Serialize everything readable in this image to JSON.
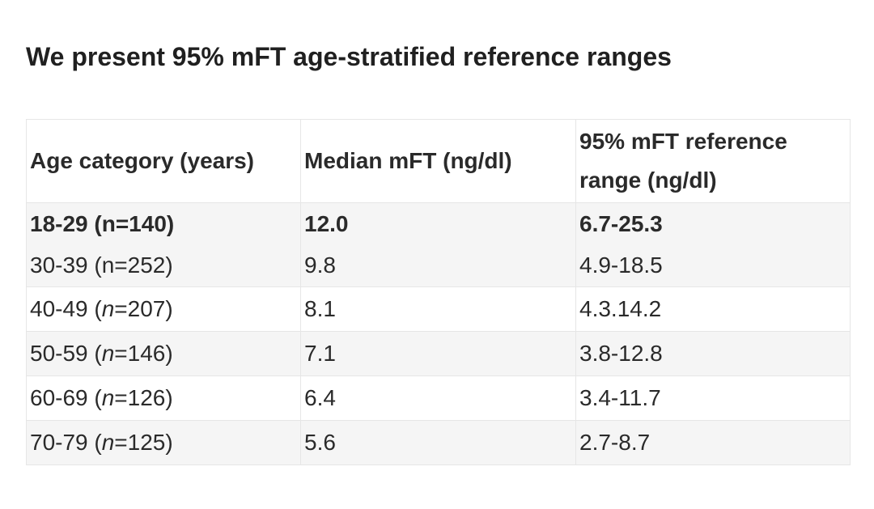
{
  "heading": "We present 95% mFT age-stratified reference ranges",
  "table": {
    "headers": [
      "Age category (years)",
      "Median mFT (ng/dl)",
      "95% mFT reference range (ng/dl)"
    ],
    "rows": [
      {
        "age_prefix": "18-29 (",
        "n_label": "n",
        "age_suffix": "=140)",
        "median": "12.0",
        "range": "6.7-25.3"
      },
      {
        "age_prefix": "30-39 (",
        "n_label": "n",
        "age_suffix": "=252)",
        "median": "9.8",
        "range": "4.9-18.5"
      },
      {
        "age_prefix": "40-49 (",
        "n_label": "n",
        "age_suffix": "=207)",
        "median": "8.1",
        "range": "4.3.14.2"
      },
      {
        "age_prefix": "50-59 (",
        "n_label": "n",
        "age_suffix": "=146)",
        "median": "7.1",
        "range": "3.8-12.8"
      },
      {
        "age_prefix": "60-69 (",
        "n_label": "n",
        "age_suffix": "=126)",
        "median": "6.4",
        "range": "3.4-11.7"
      },
      {
        "age_prefix": "70-79 (",
        "n_label": "n",
        "age_suffix": "=125)",
        "median": "5.6",
        "range": "2.7-8.7"
      }
    ]
  }
}
